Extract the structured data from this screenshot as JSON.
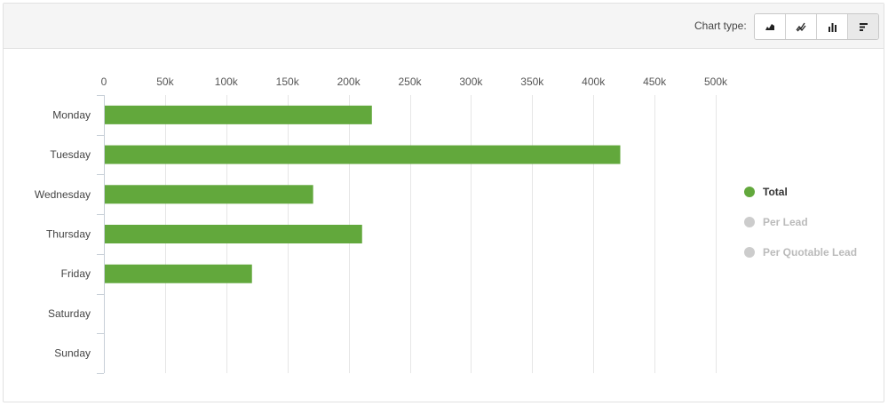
{
  "toolbar": {
    "chart_type_label": "Chart type:",
    "buttons": [
      {
        "icon": "area-chart-icon",
        "active": false
      },
      {
        "icon": "line-chart-icon",
        "active": false
      },
      {
        "icon": "column-chart-icon",
        "active": false
      },
      {
        "icon": "bar-chart-icon",
        "active": true
      }
    ]
  },
  "legend": {
    "items": [
      {
        "label": "Total",
        "color": "#62a83c",
        "enabled": true
      },
      {
        "label": "Per Lead",
        "color": "#cccccc",
        "enabled": false
      },
      {
        "label": "Per Quotable Lead",
        "color": "#cccccc",
        "enabled": false
      }
    ]
  },
  "chart_data": {
    "type": "bar",
    "orientation": "horizontal",
    "categories": [
      "Monday",
      "Tuesday",
      "Wednesday",
      "Thursday",
      "Friday",
      "Saturday",
      "Sunday"
    ],
    "series": [
      {
        "name": "Total",
        "values": [
          219000,
          422000,
          171000,
          211000,
          121000,
          0,
          0
        ],
        "color": "#62a83c"
      }
    ],
    "xlim": [
      0,
      500000
    ],
    "x_ticks": [
      0,
      50000,
      100000,
      150000,
      200000,
      250000,
      300000,
      350000,
      400000,
      450000,
      500000
    ],
    "x_tick_labels": [
      "0",
      "50k",
      "100k",
      "150k",
      "200k",
      "250k",
      "300k",
      "350k",
      "400k",
      "450k",
      "500k"
    ],
    "x_axis_position": "top",
    "grid": true,
    "legend_position": "right",
    "colors": {
      "bar": "#62a83c",
      "grid": "#e6e6e6",
      "axis": "#c8d0d8"
    }
  }
}
